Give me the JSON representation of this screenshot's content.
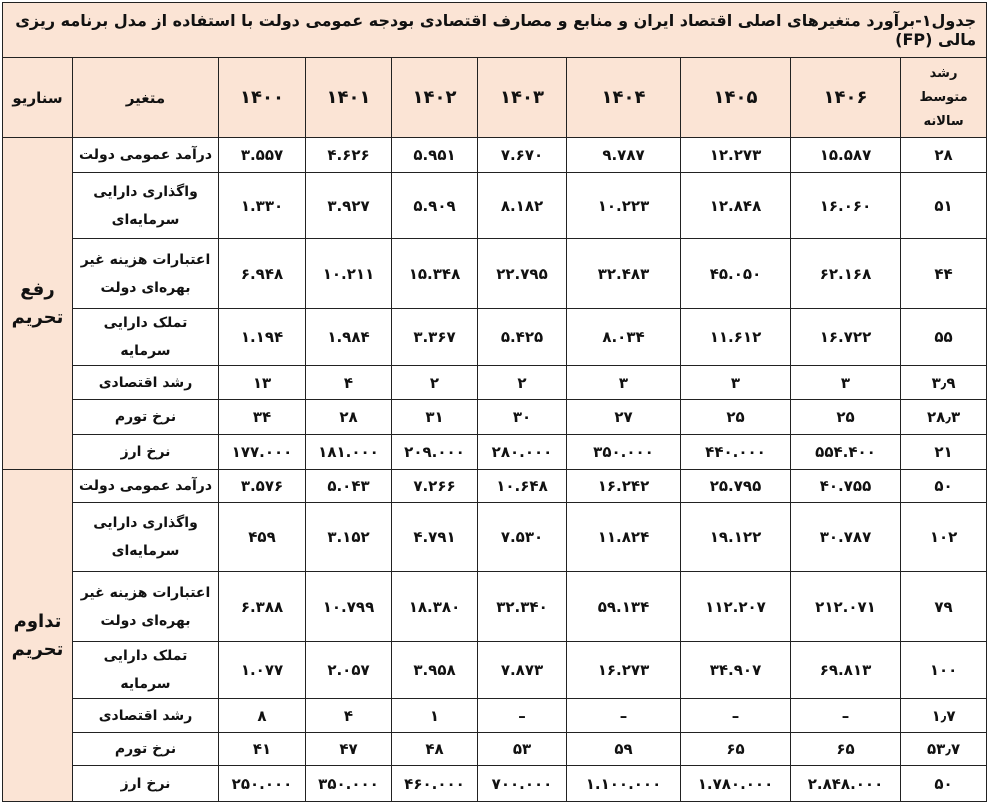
{
  "title": "جدول۱-برآورد متغیرهای اصلی اقتصاد ایران و منابع و مصارف اقتصادی بودجه عمومی دولت با استفاده از مدل برنامه ریزی مالی (FP)",
  "header": {
    "scenario": "سناریو",
    "variable": "متغیر",
    "years": [
      "۱۴۰۰",
      "۱۴۰۱",
      "۱۴۰۲",
      "۱۴۰۳",
      "۱۴۰۴",
      "۱۴۰۵",
      "۱۴۰۶"
    ],
    "growth": "رشد متوسط سالانه"
  },
  "sections": [
    {
      "scenario": "رفع تحریم",
      "rows": [
        {
          "label": "درآمد عمومی دولت",
          "values": [
            "۳.۵۵۷",
            "۴.۶۲۶",
            "۵.۹۵۱",
            "۷.۶۷۰",
            "۹.۷۸۷",
            "۱۲.۲۷۳",
            "۱۵.۵۸۷"
          ],
          "growth": "۲۸"
        },
        {
          "label": "واگذاری دارایی سرمایه‌ای",
          "values": [
            "۱.۳۳۰",
            "۳.۹۲۷",
            "۵.۹۰۹",
            "۸.۱۸۲",
            "۱۰.۲۲۳",
            "۱۲.۸۴۸",
            "۱۶.۰۶۰"
          ],
          "growth": "۵۱"
        },
        {
          "label": "اعتبارات هزینه غیر بهره‌ای دولت",
          "values": [
            "۶.۹۴۸",
            "۱۰.۲۱۱",
            "۱۵.۳۴۸",
            "۲۲.۷۹۵",
            "۳۲.۴۸۳",
            "۴۵.۰۵۰",
            "۶۲.۱۶۸"
          ],
          "growth": "۴۴"
        },
        {
          "label": "تملک دارایی سرمایه",
          "values": [
            "۱.۱۹۴",
            "۱.۹۸۴",
            "۳.۳۶۷",
            "۵.۴۲۵",
            "۸.۰۳۴",
            "۱۱.۶۱۲",
            "۱۶.۷۲۲"
          ],
          "growth": "۵۵"
        },
        {
          "label": "رشد اقتصادی",
          "values": [
            "۱۳",
            "۴",
            "۲",
            "۲",
            "۳",
            "۳",
            "۳"
          ],
          "growth": "۳٫۹"
        },
        {
          "label": "نرخ تورم",
          "values": [
            "۳۴",
            "۲۸",
            "۳۱",
            "۳۰",
            "۲۷",
            "۲۵",
            "۲۵"
          ],
          "growth": "۲۸٫۳"
        },
        {
          "label": "نرخ ارز",
          "values": [
            "۱۷۷.۰۰۰",
            "۱۸۱.۰۰۰",
            "۲۰۹.۰۰۰",
            "۲۸۰.۰۰۰",
            "۳۵۰.۰۰۰",
            "۴۴۰.۰۰۰",
            "۵۵۴.۴۰۰"
          ],
          "growth": "۲۱"
        }
      ]
    },
    {
      "scenario": "تداوم تحریم",
      "rows": [
        {
          "label": "درآمد عمومی دولت",
          "values": [
            "۳.۵۷۶",
            "۵.۰۴۳",
            "۷.۲۶۶",
            "۱۰.۶۴۸",
            "۱۶.۲۴۲",
            "۲۵.۷۹۵",
            "۴۰.۷۵۵"
          ],
          "growth": "۵۰"
        },
        {
          "label": "واگذاری دارایی سرمایه‌ای",
          "values": [
            "۴۵۹",
            "۳.۱۵۲",
            "۴.۷۹۱",
            "۷.۵۳۰",
            "۱۱.۸۲۴",
            "۱۹.۱۲۲",
            "۳۰.۷۸۷"
          ],
          "growth": "۱۰۲"
        },
        {
          "label": "اعتبارات هزینه غیر بهره‌ای دولت",
          "values": [
            "۶.۳۸۸",
            "۱۰.۷۹۹",
            "۱۸.۳۸۰",
            "۳۲.۳۴۰",
            "۵۹.۱۳۴",
            "۱۱۲.۲۰۷",
            "۲۱۲.۰۷۱"
          ],
          "growth": "۷۹"
        },
        {
          "label": "تملک دارایی سرمایه",
          "values": [
            "۱.۰۷۷",
            "۲.۰۵۷",
            "۳.۹۵۸",
            "۷.۸۷۳",
            "۱۶.۲۷۳",
            "۳۴.۹۰۷",
            "۶۹.۸۱۳"
          ],
          "growth": "۱۰۰"
        },
        {
          "label": "رشد اقتصادی",
          "values": [
            "۸",
            "۴",
            "۱",
            "–",
            "–",
            "–",
            "–"
          ],
          "growth": "۱٫۷"
        },
        {
          "label": "نرخ تورم",
          "values": [
            "۴۱",
            "۴۷",
            "۴۸",
            "۵۳",
            "۵۹",
            "۶۵",
            "۶۵"
          ],
          "growth": "۵۳٫۷"
        },
        {
          "label": "نرخ ارز",
          "values": [
            "۲۵۰.۰۰۰",
            "۳۵۰.۰۰۰",
            "۴۶۰.۰۰۰",
            "۷۰۰.۰۰۰",
            "۱.۱۰۰.۰۰۰",
            "۱.۷۸۰.۰۰۰",
            "۲.۸۴۸.۰۰۰"
          ],
          "growth": "۵۰"
        }
      ]
    }
  ]
}
